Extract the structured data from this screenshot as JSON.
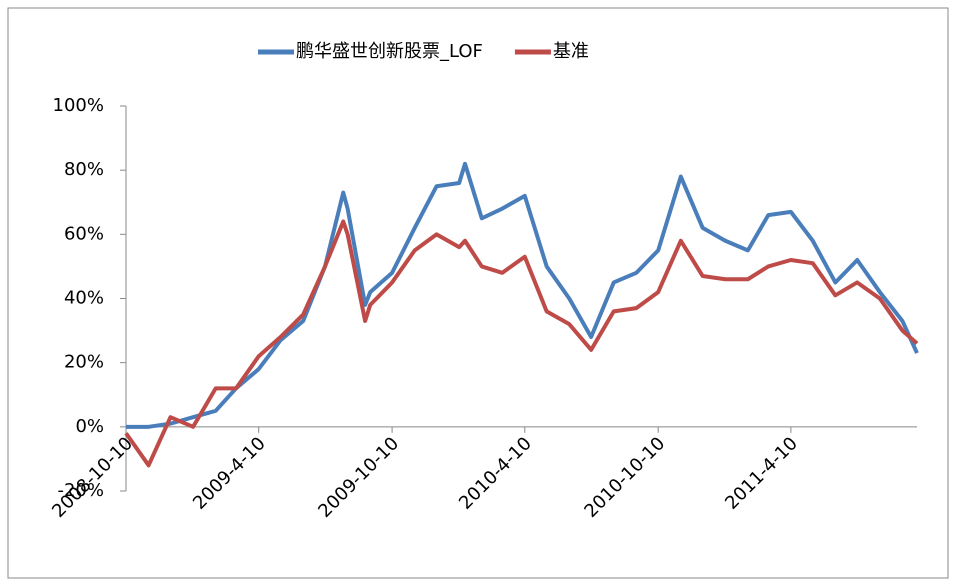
{
  "chart_data": {
    "type": "line",
    "x": [
      "2008-10-10",
      "2008-11-10",
      "2008-12-10",
      "2009-01-10",
      "2009-02-10",
      "2009-03-10",
      "2009-04-10",
      "2009-05-10",
      "2009-06-10",
      "2009-07-10",
      "2009-08-04",
      "2009-08-10",
      "2009-09-03",
      "2009-09-10",
      "2009-10-10",
      "2009-11-10",
      "2009-12-10",
      "2010-01-10",
      "2010-01-18",
      "2010-02-10",
      "2010-03-10",
      "2010-04-10",
      "2010-05-10",
      "2010-06-10",
      "2010-07-10",
      "2010-08-10",
      "2010-09-10",
      "2010-10-10",
      "2010-11-10",
      "2010-12-10",
      "2011-01-10",
      "2011-02-10",
      "2011-03-10",
      "2011-04-10",
      "2011-05-10",
      "2011-06-10",
      "2011-07-10",
      "2011-08-10",
      "2011-09-10",
      "2011-09-30"
    ],
    "series": [
      {
        "name": "鹏华盛世创新股票_LOF",
        "color": "#4a7ebb",
        "values": [
          0,
          0,
          1,
          3,
          5,
          12,
          18,
          27,
          33,
          50,
          73,
          68,
          38,
          42,
          48,
          62,
          75,
          76,
          82,
          65,
          68,
          72,
          50,
          40,
          28,
          45,
          48,
          55,
          78,
          62,
          58,
          55,
          66,
          67,
          58,
          45,
          52,
          42,
          33,
          23
        ]
      },
      {
        "name": "基准",
        "color": "#be4b48",
        "values": [
          -2,
          -12,
          3,
          0,
          12,
          12,
          22,
          28,
          35,
          50,
          64,
          60,
          33,
          38,
          45,
          55,
          60,
          56,
          58,
          50,
          48,
          53,
          36,
          32,
          24,
          36,
          37,
          42,
          58,
          47,
          46,
          46,
          50,
          52,
          51,
          41,
          45,
          40,
          30,
          26
        ]
      }
    ],
    "xlim": [
      "2008-10-10",
      "2011-09-30"
    ],
    "xticks": [
      "2008-10-10",
      "2009-4-10",
      "2009-10-10",
      "2010-4-10",
      "2010-10-10",
      "2011-4-10"
    ],
    "ylim": [
      -20,
      100
    ],
    "yticks": [
      {
        "value": -20,
        "label": "-20%"
      },
      {
        "value": 0,
        "label": "0%"
      },
      {
        "value": 20,
        "label": "20%"
      },
      {
        "value": 40,
        "label": "40%"
      },
      {
        "value": 60,
        "label": "60%"
      },
      {
        "value": 80,
        "label": "80%"
      },
      {
        "value": 100,
        "label": "100%"
      }
    ],
    "legend": "top"
  }
}
